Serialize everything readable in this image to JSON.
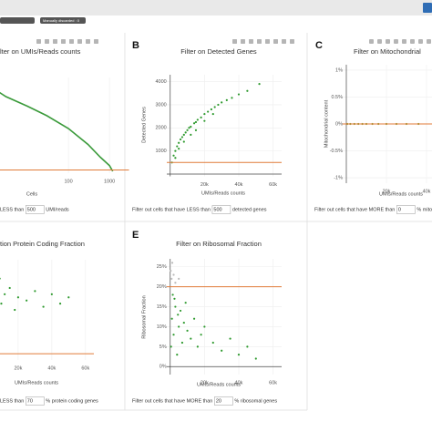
{
  "badge": "Manually discarded : 0",
  "chart_data": [
    {
      "type": "line",
      "title": "lter on UMIs/Reads counts",
      "xlabel": "Cells",
      "xscale": "log",
      "x": [
        1,
        3,
        10,
        30,
        100,
        300,
        600,
        1000,
        1200
      ],
      "y": [
        14000,
        12000,
        10500,
        9000,
        7000,
        4500,
        2500,
        1200,
        300
      ],
      "color": "#3a9a3a",
      "xlim": [
        1,
        3000
      ],
      "ylim": [
        0,
        15000
      ],
      "xticks": [
        100,
        1000
      ],
      "grid": true,
      "threshold": 500,
      "threshold_color": "#e07b39",
      "filter_before": "LESS than",
      "filter_after": "UMI/reads"
    },
    {
      "type": "scatter",
      "panel_label": "B",
      "title": "Filter on Detected Genes",
      "xlabel": "UMIs/Reads counts",
      "ylabel": "Detected Genes",
      "series": [
        {
          "color": "#2e9a2e",
          "x": [
            1000,
            2000,
            3000,
            4000,
            5000,
            6000,
            7000,
            8000,
            9000,
            10000,
            11000,
            12000,
            14000,
            15000,
            16000,
            18000,
            20000,
            22000,
            24000,
            26000,
            28000,
            30000,
            33000,
            36000,
            40000,
            45000,
            52000,
            3000,
            5000,
            8000,
            12000,
            15000,
            20000,
            25000
          ],
          "y": [
            500,
            800,
            1000,
            1200,
            1350,
            1500,
            1600,
            1700,
            1800,
            1900,
            2000,
            2050,
            2200,
            2250,
            2350,
            2450,
            2600,
            2700,
            2800,
            2900,
            3000,
            3100,
            3200,
            3300,
            3450,
            3600,
            3900,
            700,
            1100,
            1400,
            1700,
            1900,
            2300,
            2600
          ]
        }
      ],
      "xlim": [
        -2000,
        65000
      ],
      "ylim": [
        -100,
        4300
      ],
      "xticks": [
        {
          "value": 20000,
          "label": "20k"
        },
        {
          "value": 40000,
          "label": "40k"
        },
        {
          "value": 60000,
          "label": "60k"
        }
      ],
      "yticks": [
        1000,
        2000,
        3000,
        4000
      ],
      "grid": true,
      "threshold": 500,
      "threshold_color": "#e07b39",
      "filter_before": "Filter out cells that have LESS than",
      "filter_after": "detected genes"
    },
    {
      "type": "scatter",
      "panel_label": "C",
      "title": "Filter on Mitochondrial",
      "xlabel": "UMIs/Reads counts",
      "ylabel": "Mitochondrial content",
      "series": [
        {
          "color": "#8aa63a",
          "x": [
            500,
            2000,
            4000,
            6000,
            8000,
            10000,
            13000,
            16000,
            20000,
            25000,
            30000,
            36000,
            45000
          ],
          "y": [
            0,
            0,
            0,
            0,
            0,
            0,
            0,
            0,
            0,
            0,
            0,
            0,
            0
          ]
        }
      ],
      "xlim": [
        -2000,
        65000
      ],
      "ylim": [
        -1.1,
        1.1
      ],
      "xticks": [
        {
          "value": 20000,
          "label": "20k"
        },
        {
          "value": 40000,
          "label": "40k"
        }
      ],
      "yticks": [
        {
          "value": -1,
          "label": "-1%"
        },
        {
          "value": -0.5,
          "label": "-0.5%"
        },
        {
          "value": 0,
          "label": "0%"
        },
        {
          "value": 0.5,
          "label": "0.5%"
        },
        {
          "value": 1,
          "label": "1%"
        }
      ],
      "grid": true,
      "threshold": 0,
      "threshold_color": "#e07b39",
      "filter_before": "Filter out cells that have MORE than",
      "filter_after": "% mitochondri"
    },
    {
      "type": "scatter",
      "title": "tion Protein Coding Fraction",
      "xlabel": "UMIs/Reads counts",
      "series": [
        {
          "color": "#2e9a2e",
          "x": [
            500,
            1000,
            1500,
            2000,
            3000,
            4000,
            5000,
            6000,
            8000,
            10000,
            12000,
            15000,
            18000,
            20000,
            25000,
            30000,
            35000,
            40000,
            45000,
            50000,
            2500,
            3500,
            7000,
            9000
          ],
          "y": [
            90,
            85,
            95,
            80,
            88,
            92,
            83,
            87,
            90,
            86,
            89,
            91,
            84,
            88,
            87,
            90,
            85,
            89,
            86,
            88,
            78,
            82,
            93,
            94
          ]
        }
      ],
      "xlim": [
        -2000,
        65000
      ],
      "ylim": [
        68,
        100
      ],
      "xticks": [
        {
          "value": 20000,
          "label": "20k"
        },
        {
          "value": 40000,
          "label": "40k"
        },
        {
          "value": 60000,
          "label": "60k"
        }
      ],
      "grid": true,
      "threshold": 70,
      "threshold_color": "#e07b39",
      "filter_before": "LESS than",
      "filter_after": "% protein coding genes"
    },
    {
      "type": "scatter",
      "panel_label": "E",
      "title": "Filter on Ribosomal Fraction",
      "xlabel": "UMIs/Reads counts",
      "ylabel": "Ribosomal Fraction",
      "series": [
        {
          "color": "#2e9a2e",
          "x": [
            500,
            1000,
            1500,
            2000,
            3000,
            4000,
            5000,
            6000,
            7000,
            8000,
            10000,
            12000,
            14000,
            16000,
            18000,
            20000,
            25000,
            30000,
            35000,
            40000,
            45000,
            50000,
            2500,
            4500,
            9000
          ],
          "y": [
            5,
            12,
            18,
            8,
            15,
            3,
            10,
            14,
            6,
            11,
            9,
            7,
            12,
            5,
            8,
            10,
            6,
            4,
            7,
            3,
            5,
            2,
            17,
            13,
            16
          ]
        },
        {
          "color": "#bbbbbb",
          "x": [
            300,
            800,
            1200,
            2000,
            3000,
            5000
          ],
          "y": [
            24,
            22,
            26,
            23,
            21,
            22
          ]
        }
      ],
      "xlim": [
        -2000,
        65000
      ],
      "ylim": [
        -2,
        27
      ],
      "xticks": [
        {
          "value": 20000,
          "label": "20k"
        },
        {
          "value": 40000,
          "label": "40k"
        },
        {
          "value": 60000,
          "label": "60k"
        }
      ],
      "yticks": [
        {
          "value": 0,
          "label": "0%"
        },
        {
          "value": 5,
          "label": "5%"
        },
        {
          "value": 10,
          "label": "10%"
        },
        {
          "value": 15,
          "label": "15%"
        },
        {
          "value": 20,
          "label": "20%"
        },
        {
          "value": 25,
          "label": "25%"
        }
      ],
      "grid": true,
      "threshold": 20,
      "threshold_color": "#e07b39",
      "filter_before": "Filter out cells that have MORE than",
      "filter_after": "% ribosomal genes"
    }
  ]
}
